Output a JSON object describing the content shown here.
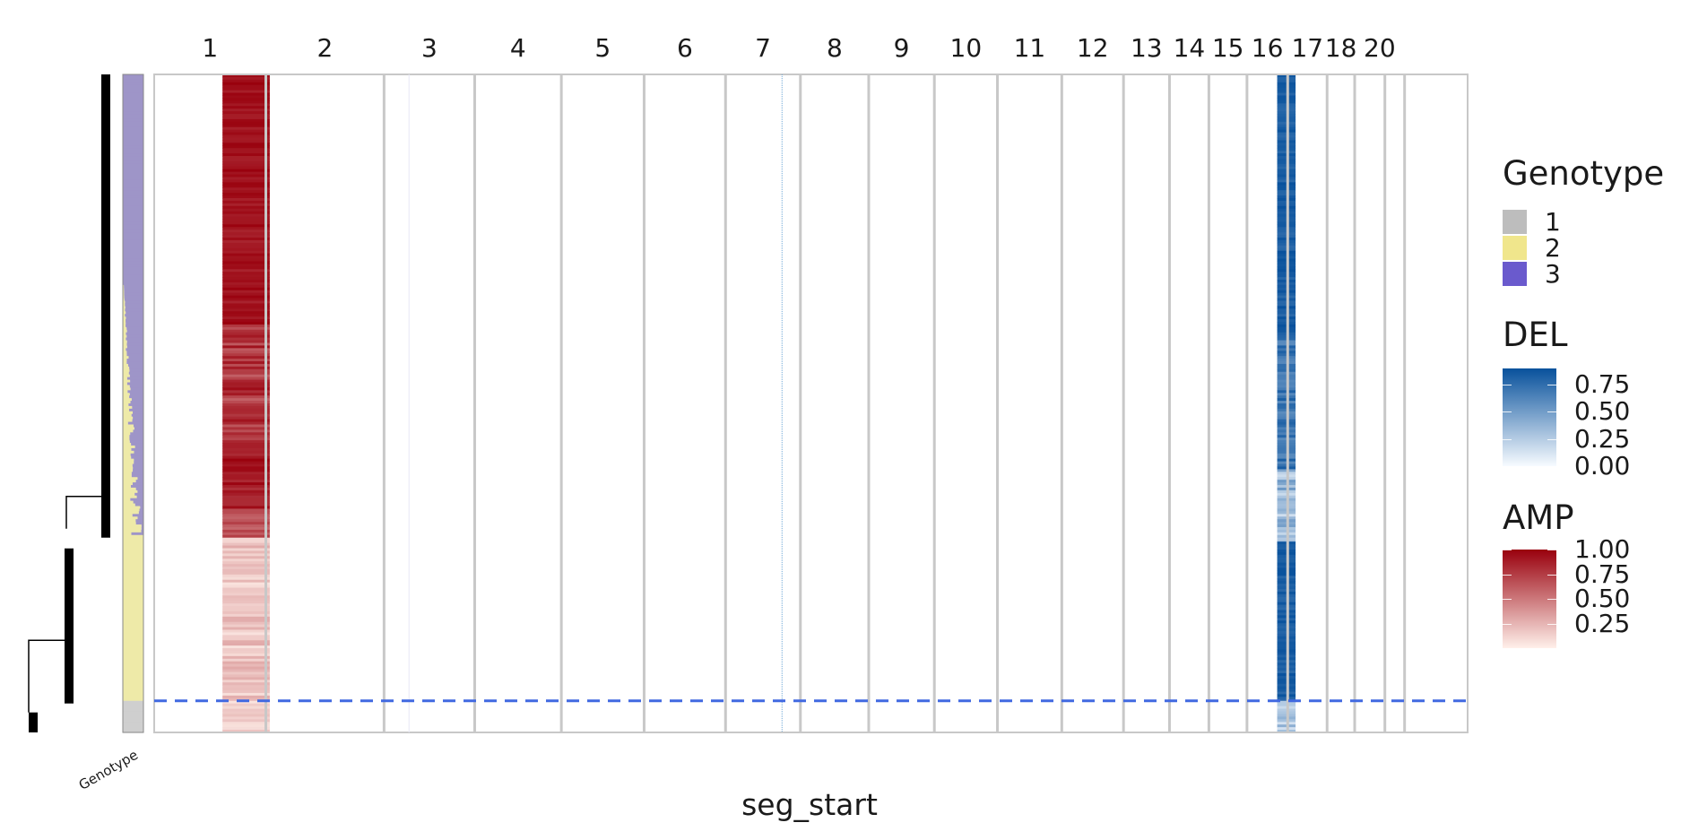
{
  "chart_data": {
    "type": "heatmap",
    "x_axis_label": "seg_start",
    "row_annotation_label": "Genotype",
    "chromosome_labels": [
      "1",
      "2",
      "3",
      "4",
      "5",
      "6",
      "7",
      "8",
      "9",
      "10",
      "11",
      "12",
      "13",
      "14",
      "15",
      "16",
      "17",
      "18",
      "20"
    ],
    "chromosome_boundaries_genome_fraction": [
      0,
      0.085,
      0.175,
      0.244,
      0.31,
      0.373,
      0.435,
      0.492,
      0.544,
      0.594,
      0.642,
      0.691,
      0.738,
      0.773,
      0.803,
      0.832,
      0.863,
      0.893,
      0.914,
      0.937,
      0.952,
      1.0
    ],
    "cells": 500,
    "threshold_line_row": 476,
    "events": [
      {
        "type": "AMP",
        "chromosome": "1",
        "start_fraction": 0.052,
        "end_fraction": 0.088,
        "row_bands": [
          {
            "rows": [
              0,
              190
            ],
            "value_range": [
              0.85,
              1.0
            ]
          },
          {
            "rows": [
              190,
              280
            ],
            "value_range": [
              0.6,
              0.95
            ]
          },
          {
            "rows": [
              280,
              330
            ],
            "value_range": [
              0.8,
              1.0
            ]
          },
          {
            "rows": [
              330,
              352
            ],
            "value_range": [
              0.55,
              0.75
            ]
          },
          {
            "rows": [
              352,
              476
            ],
            "value_range": [
              0.05,
              0.3
            ]
          },
          {
            "rows": [
              476,
              500
            ],
            "value_range": [
              0.05,
              0.2
            ]
          }
        ]
      },
      {
        "type": "DEL",
        "chromosome": "16",
        "start_fraction": 0.855,
        "end_fraction": 0.869,
        "row_bands": [
          {
            "rows": [
              0,
              200
            ],
            "value_range": [
              0.85,
              1.0
            ]
          },
          {
            "rows": [
              200,
              300
            ],
            "value_range": [
              0.65,
              0.95
            ]
          },
          {
            "rows": [
              300,
              355
            ],
            "value_range": [
              0.15,
              0.6
            ]
          },
          {
            "rows": [
              355,
              476
            ],
            "value_range": [
              0.85,
              1.0
            ]
          },
          {
            "rows": [
              476,
              500
            ],
            "value_range": [
              0.15,
              0.5
            ]
          }
        ]
      }
    ],
    "genotype_bands": [
      {
        "rows": [
          0,
          160
        ],
        "genotype": "3"
      },
      {
        "rows": [
          160,
          350
        ],
        "genotype": "mixed_2_3"
      },
      {
        "rows": [
          350,
          476
        ],
        "genotype": "2"
      },
      {
        "rows": [
          476,
          500
        ],
        "genotype": "1"
      }
    ],
    "dendrogram": {
      "clusters": [
        [
          0,
          352
        ],
        [
          352,
          478
        ],
        [
          478,
          500
        ]
      ]
    }
  },
  "legends": {
    "genotype": {
      "title": "Genotype",
      "items": [
        {
          "label": "1",
          "color": "#bdbdbd"
        },
        {
          "label": "2",
          "color": "#f0e68c"
        },
        {
          "label": "3",
          "color": "#6a5acd"
        }
      ]
    },
    "del": {
      "title": "DEL",
      "ticks": [
        "0.75",
        "0.50",
        "0.25",
        "0.00"
      ],
      "tick_values": [
        0.75,
        0.5,
        0.25,
        0.0
      ],
      "color_low": "#f7fbff",
      "color_high": "#08519c"
    },
    "amp": {
      "title": "AMP",
      "ticks": [
        "1.00",
        "0.75",
        "0.50",
        "0.25"
      ],
      "tick_values": [
        1.0,
        0.75,
        0.5,
        0.25
      ],
      "color_low": "#fff0ea",
      "color_high": "#99000d"
    }
  },
  "colors": {
    "boundary": "#c8c8c8",
    "threshold_line": "#4169e1",
    "genotype_3_light": "#9e95c8",
    "genotype_2_light": "#eeeaa8",
    "genotype_1": "#cfcfcf"
  }
}
